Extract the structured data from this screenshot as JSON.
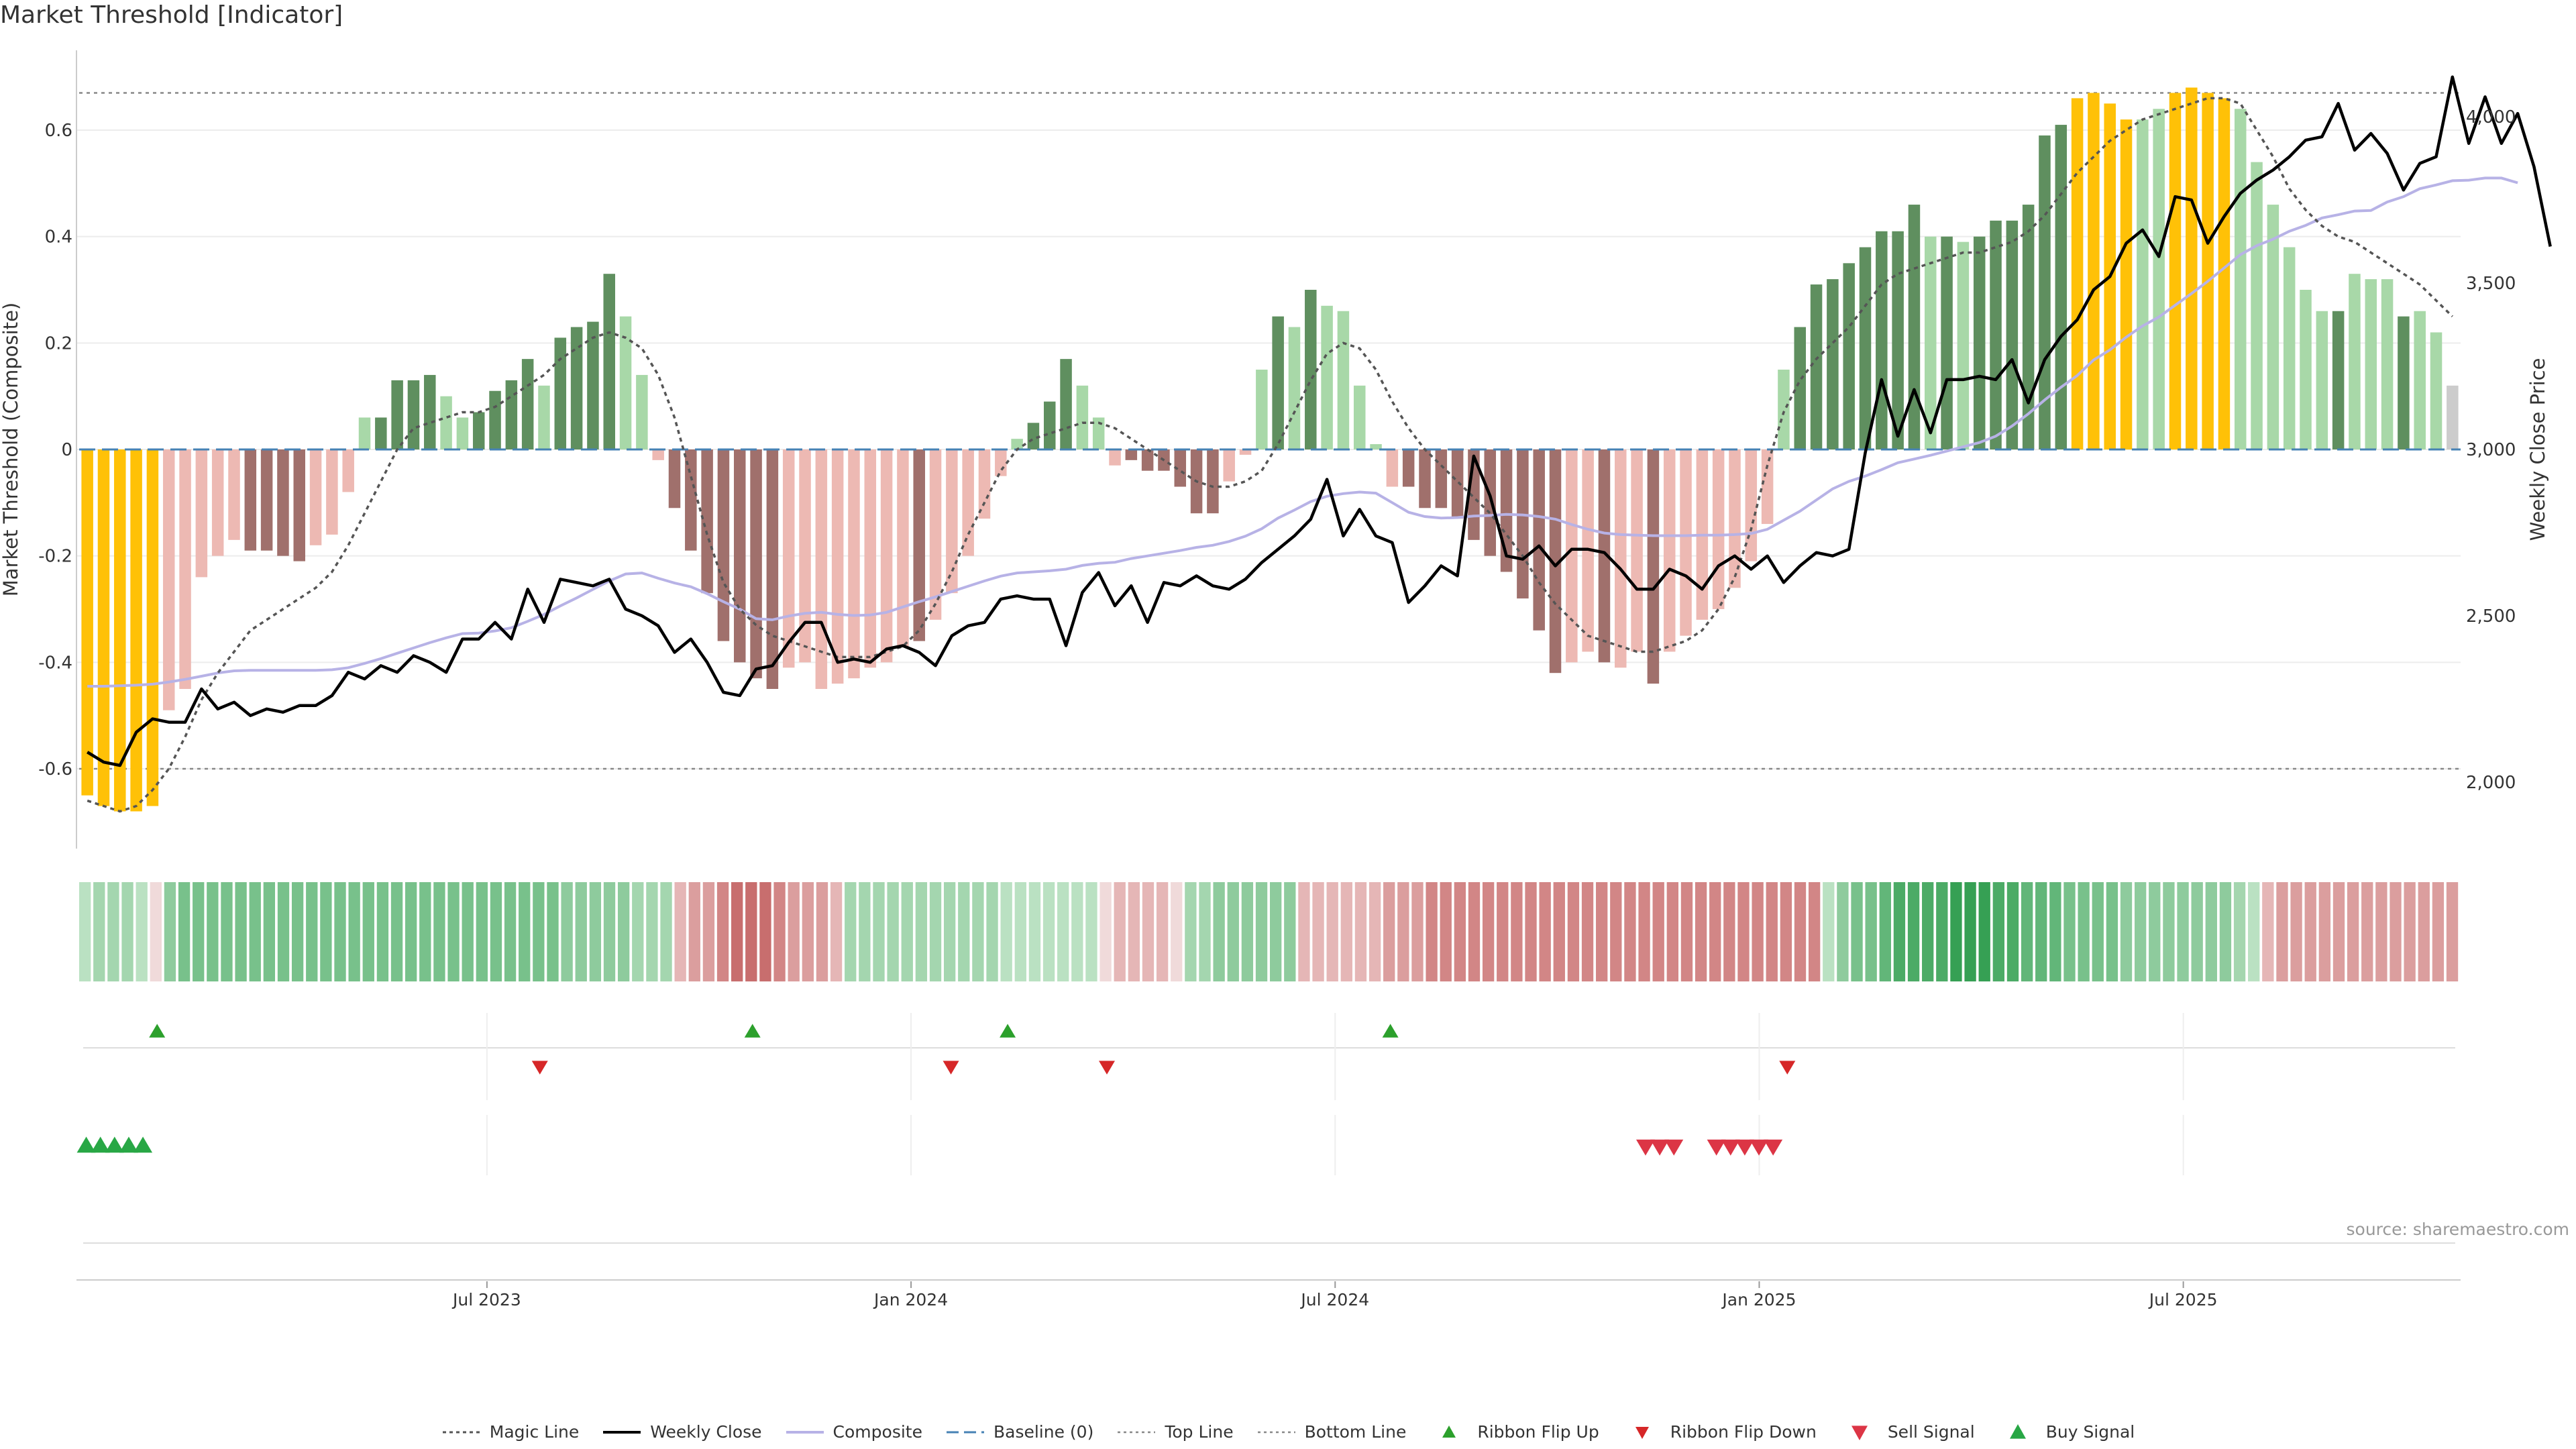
{
  "title": "Market Threshold [Indicator]",
  "source": "source: sharemaestro.com",
  "colors": {
    "gold": "#FFC107",
    "dark_green": "#5F8F5F",
    "light_green": "#A8D8A8",
    "dark_red": "#A0706C",
    "light_red": "#EDB9B3",
    "weekly_close": "#000000",
    "magic_line": "#555555",
    "composite": "#B7B2E6",
    "baseline": "#4682B4",
    "ref_lines": "#888888",
    "ribbon_flip_up": "#2CA02C",
    "ribbon_flip_down": "#D62728",
    "sell_signal": "#DC3545",
    "buy_signal": "#28A745"
  },
  "chart_data": {
    "type": "bar",
    "title": "Market Threshold [Indicator]",
    "ylabel_left": "Market Threshold (Composite)",
    "ylabel_right": "Weekly Close Price",
    "ylim_left": [
      -0.75,
      0.75
    ],
    "ylim_right": [
      1800,
      4200
    ],
    "yticks_left": [
      "0.6",
      "0.4",
      "0.2",
      "0",
      "-0.2",
      "-0.4",
      "-0.6"
    ],
    "yticks_right": [
      "4,000",
      "3,500",
      "3,000",
      "2,500",
      "2,000"
    ],
    "x_labels": [
      "Jul 2023",
      "Jan 2024",
      "Jul 2024",
      "Jan 2025",
      "Jul 2025"
    ],
    "x_label_weeks": [
      25,
      51,
      77,
      103,
      129
    ],
    "top_line": 0.67,
    "bottom_line": -0.6,
    "baseline": 0,
    "grid": true,
    "legend_position": "bottom",
    "composite_bars": [
      -0.65,
      -0.67,
      -0.68,
      -0.68,
      -0.67,
      -0.49,
      -0.45,
      -0.24,
      -0.2,
      -0.17,
      -0.19,
      -0.19,
      -0.2,
      -0.21,
      -0.18,
      -0.16,
      -0.08,
      0.06,
      0.06,
      0.13,
      0.13,
      0.14,
      0.1,
      0.06,
      0.07,
      0.11,
      0.13,
      0.17,
      0.12,
      0.21,
      0.23,
      0.24,
      0.33,
      0.25,
      0.14,
      -0.02,
      -0.11,
      -0.19,
      -0.27,
      -0.36,
      -0.4,
      -0.43,
      -0.45,
      -0.41,
      -0.4,
      -0.45,
      -0.44,
      -0.43,
      -0.41,
      -0.4,
      -0.37,
      -0.36,
      -0.32,
      -0.27,
      -0.2,
      -0.13,
      -0.05,
      0.02,
      0.05,
      0.09,
      0.17,
      0.12,
      0.06,
      -0.03,
      -0.02,
      -0.04,
      -0.04,
      -0.07,
      -0.12,
      -0.12,
      -0.06,
      -0.01,
      0.15,
      0.25,
      0.23,
      0.3,
      0.27,
      0.26,
      0.12,
      0.01,
      -0.07,
      -0.07,
      -0.11,
      -0.11,
      -0.13,
      -0.17,
      -0.2,
      -0.23,
      -0.28,
      -0.34,
      -0.42,
      -0.4,
      -0.38,
      -0.4,
      -0.41,
      -0.38,
      -0.44,
      -0.38,
      -0.35,
      -0.32,
      -0.3,
      -0.26,
      -0.21,
      -0.14,
      0.15,
      0.23,
      0.31,
      0.32,
      0.35,
      0.38,
      0.41,
      0.41,
      0.46,
      0.4,
      0.4,
      0.39,
      0.4,
      0.43,
      0.43,
      0.46,
      0.59,
      0.61,
      0.66,
      0.67,
      0.65,
      0.62,
      0.62,
      0.64,
      0.67,
      0.68,
      0.67,
      0.66,
      0.64,
      0.54,
      0.46,
      0.38,
      0.3,
      0.26,
      0.26,
      0.33,
      0.32,
      0.32,
      0.25,
      0.26,
      0.22,
      0.12
    ],
    "bar_categories": [
      "gold",
      "gold",
      "gold",
      "gold",
      "gold",
      "light_red",
      "light_red",
      "light_red",
      "light_red",
      "light_red",
      "dark_red",
      "dark_red",
      "dark_red",
      "dark_red",
      "light_red",
      "light_red",
      "light_red",
      "light_green",
      "dark_green",
      "dark_green",
      "dark_green",
      "dark_green",
      "light_green",
      "light_green",
      "dark_green",
      "dark_green",
      "dark_green",
      "dark_green",
      "light_green",
      "dark_green",
      "dark_green",
      "dark_green",
      "dark_green",
      "light_green",
      "light_green",
      "light_red",
      "dark_red",
      "dark_red",
      "dark_red",
      "dark_red",
      "dark_red",
      "dark_red",
      "dark_red",
      "light_red",
      "light_red",
      "light_red",
      "light_red",
      "light_red",
      "light_red",
      "light_red",
      "light_red",
      "dark_red",
      "light_red",
      "light_red",
      "light_red",
      "light_red",
      "light_red",
      "light_green",
      "dark_green",
      "dark_green",
      "dark_green",
      "light_green",
      "light_green",
      "light_red",
      "dark_red",
      "dark_red",
      "dark_red",
      "dark_red",
      "dark_red",
      "dark_red",
      "light_red",
      "light_red",
      "light_green",
      "dark_green",
      "light_green",
      "dark_green",
      "light_green",
      "light_green",
      "light_green",
      "light_green",
      "light_red",
      "dark_red",
      "dark_red",
      "dark_red",
      "dark_red",
      "dark_red",
      "dark_red",
      "dark_red",
      "dark_red",
      "dark_red",
      "dark_red",
      "light_red",
      "light_red",
      "dark_red",
      "light_red",
      "light_red",
      "dark_red",
      "light_red",
      "light_red",
      "light_red",
      "light_red",
      "light_red",
      "light_red",
      "light_red",
      "light_green",
      "dark_green",
      "dark_green",
      "dark_green",
      "dark_green",
      "dark_green",
      "dark_green",
      "dark_green",
      "dark_green",
      "light_green",
      "dark_green",
      "light_green",
      "dark_green",
      "dark_green",
      "dark_green",
      "dark_green",
      "dark_green",
      "dark_green",
      "gold",
      "gold",
      "gold",
      "gold",
      "light_green",
      "light_green",
      "gold",
      "gold",
      "gold",
      "gold",
      "light_green",
      "light_green",
      "light_green",
      "light_green",
      "light_green",
      "light_green",
      "dark_green",
      "light_green",
      "light_green",
      "light_green",
      "dark_green",
      "light_green",
      "light_green"
    ],
    "weekly_close": [
      2090,
      2060,
      2050,
      2150,
      2190,
      2180,
      2180,
      2280,
      2220,
      2240,
      2200,
      2220,
      2210,
      2230,
      2230,
      2260,
      2330,
      2310,
      2350,
      2330,
      2380,
      2360,
      2330,
      2430,
      2430,
      2480,
      2430,
      2580,
      2480,
      2610,
      2600,
      2590,
      2610,
      2520,
      2500,
      2470,
      2390,
      2430,
      2360,
      2270,
      2260,
      2340,
      2350,
      2420,
      2480,
      2480,
      2360,
      2370,
      2360,
      2400,
      2410,
      2390,
      2350,
      2440,
      2470,
      2480,
      2550,
      2560,
      2550,
      2550,
      2410,
      2570,
      2630,
      2530,
      2590,
      2480,
      2600,
      2590,
      2620,
      2590,
      2580,
      2610,
      2660,
      2700,
      2740,
      2790,
      2910,
      2740,
      2820,
      2740,
      2720,
      2540,
      2590,
      2650,
      2620,
      2980,
      2860,
      2680,
      2670,
      2710,
      2650,
      2700,
      2700,
      2690,
      2640,
      2580,
      2580,
      2640,
      2620,
      2580,
      2650,
      2680,
      2640,
      2680,
      2600,
      2650,
      2690,
      2680,
      2700,
      2990,
      3210,
      3040,
      3180,
      3050,
      3210,
      3210,
      3220,
      3210,
      3270,
      3140,
      3270,
      3340,
      3390,
      3480,
      3520,
      3620,
      3660,
      3580,
      3760,
      3750,
      3620,
      3700,
      3770,
      3810,
      3840,
      3880,
      3930,
      3940,
      4040,
      3900,
      3950,
      3890,
      3780,
      3860,
      3880,
      4120,
      3920,
      4060,
      3920,
      4010,
      3850,
      3610
    ],
    "magic_line": [
      -0.66,
      -0.67,
      -0.68,
      -0.67,
      -0.64,
      -0.6,
      -0.54,
      -0.47,
      -0.42,
      -0.38,
      -0.34,
      -0.32,
      -0.3,
      -0.28,
      -0.26,
      -0.23,
      -0.18,
      -0.12,
      -0.06,
      0.0,
      0.04,
      0.05,
      0.06,
      0.07,
      0.07,
      0.08,
      0.1,
      0.12,
      0.14,
      0.17,
      0.19,
      0.21,
      0.22,
      0.21,
      0.19,
      0.14,
      0.06,
      -0.05,
      -0.16,
      -0.25,
      -0.3,
      -0.33,
      -0.35,
      -0.36,
      -0.37,
      -0.38,
      -0.39,
      -0.39,
      -0.39,
      -0.38,
      -0.37,
      -0.34,
      -0.29,
      -0.23,
      -0.16,
      -0.1,
      -0.04,
      0.0,
      0.02,
      0.03,
      0.04,
      0.05,
      0.05,
      0.04,
      0.02,
      0.0,
      -0.02,
      -0.04,
      -0.06,
      -0.07,
      -0.07,
      -0.06,
      -0.04,
      0.01,
      0.07,
      0.13,
      0.18,
      0.2,
      0.19,
      0.15,
      0.09,
      0.04,
      0.0,
      -0.03,
      -0.06,
      -0.09,
      -0.12,
      -0.16,
      -0.2,
      -0.25,
      -0.29,
      -0.32,
      -0.35,
      -0.36,
      -0.37,
      -0.38,
      -0.38,
      -0.37,
      -0.36,
      -0.34,
      -0.3,
      -0.24,
      -0.15,
      -0.03,
      0.07,
      0.13,
      0.17,
      0.2,
      0.23,
      0.27,
      0.31,
      0.33,
      0.34,
      0.35,
      0.36,
      0.37,
      0.37,
      0.38,
      0.39,
      0.41,
      0.44,
      0.48,
      0.52,
      0.55,
      0.58,
      0.6,
      0.62,
      0.63,
      0.64,
      0.65,
      0.66,
      0.66,
      0.65,
      0.6,
      0.55,
      0.49,
      0.45,
      0.42,
      0.4,
      0.39,
      0.37,
      0.35,
      0.33,
      0.31,
      0.28,
      0.25
    ],
    "composite_line": [
      -0.445,
      -0.445,
      -0.444,
      -0.443,
      -0.441,
      -0.437,
      -0.432,
      -0.426,
      -0.42,
      -0.416,
      -0.415,
      -0.415,
      -0.415,
      -0.415,
      -0.415,
      -0.414,
      -0.41,
      -0.402,
      -0.393,
      -0.383,
      -0.373,
      -0.363,
      -0.354,
      -0.346,
      -0.345,
      -0.341,
      -0.335,
      -0.323,
      -0.31,
      -0.294,
      -0.279,
      -0.263,
      -0.247,
      -0.234,
      -0.232,
      -0.242,
      -0.251,
      -0.258,
      -0.271,
      -0.286,
      -0.3,
      -0.318,
      -0.32,
      -0.313,
      -0.308,
      -0.306,
      -0.31,
      -0.312,
      -0.311,
      -0.306,
      -0.296,
      -0.286,
      -0.277,
      -0.267,
      -0.257,
      -0.247,
      -0.238,
      -0.232,
      -0.23,
      -0.228,
      -0.225,
      -0.218,
      -0.214,
      -0.212,
      -0.205,
      -0.2,
      -0.195,
      -0.19,
      -0.184,
      -0.18,
      -0.173,
      -0.163,
      -0.149,
      -0.129,
      -0.114,
      -0.098,
      -0.088,
      -0.083,
      -0.08,
      -0.082,
      -0.1,
      -0.118,
      -0.126,
      -0.129,
      -0.128,
      -0.125,
      -0.124,
      -0.122,
      -0.123,
      -0.126,
      -0.131,
      -0.141,
      -0.15,
      -0.157,
      -0.16,
      -0.161,
      -0.162,
      -0.162,
      -0.162,
      -0.161,
      -0.161,
      -0.16,
      -0.158,
      -0.15,
      -0.133,
      -0.116,
      -0.095,
      -0.074,
      -0.06,
      -0.05,
      -0.038,
      -0.025,
      -0.018,
      -0.011,
      -0.003,
      0.005,
      0.013,
      0.025,
      0.044,
      0.067,
      0.093,
      0.117,
      0.139,
      0.168,
      0.187,
      0.211,
      0.232,
      0.249,
      0.271,
      0.293,
      0.316,
      0.341,
      0.366,
      0.383,
      0.395,
      0.41,
      0.421,
      0.435,
      0.441,
      0.448,
      0.449,
      0.465,
      0.475,
      0.49,
      0.497,
      0.505,
      0.506,
      0.51,
      0.51,
      0.501
    ],
    "ribbon_states": [
      1,
      2,
      2,
      2,
      1,
      0,
      3,
      4,
      4,
      4,
      4,
      4,
      4,
      4,
      4,
      4,
      4,
      4,
      4,
      4,
      4,
      4,
      4,
      4,
      4,
      4,
      4,
      4,
      4,
      4,
      4,
      4,
      4,
      4,
      3,
      3,
      3,
      3,
      3,
      2,
      2,
      2,
      -1,
      -2,
      -2,
      -3,
      -4,
      -4,
      -4,
      -3,
      -2,
      -2,
      -2,
      -1,
      2,
      2,
      2,
      2,
      2,
      2,
      2,
      2,
      2,
      2,
      2,
      1,
      1,
      1,
      1,
      1,
      1,
      1,
      0,
      -1,
      -1,
      -1,
      -1,
      0,
      2,
      2,
      3,
      3,
      3,
      3,
      3,
      3,
      -1,
      -1,
      -1,
      -1,
      -1,
      -1,
      -2,
      -2,
      -2,
      -3,
      -3,
      -3,
      -3,
      -3,
      -3,
      -3,
      -3,
      -3,
      -3,
      -3,
      -3,
      -3,
      -3,
      -3,
      -3,
      -3,
      -3,
      -3,
      -3,
      -3,
      -3,
      -3,
      -3,
      -3,
      -3,
      -3,
      -3,
      1,
      3,
      4,
      4,
      5,
      6,
      6,
      6,
      6,
      7,
      7,
      7,
      6,
      6,
      5,
      5,
      5,
      4,
      4,
      4,
      4,
      3,
      3,
      3,
      3,
      3,
      3,
      3,
      3,
      2,
      1,
      -1,
      -2,
      -2,
      -2,
      -2,
      -2,
      -2,
      -2,
      -2,
      -2,
      -2,
      -2,
      -2,
      -2
    ],
    "ribbon_flip_up_weeks": [
      5,
      47,
      65,
      92
    ],
    "ribbon_flip_down_weeks": [
      32,
      61,
      72,
      120
    ],
    "buy_signal_weeks": [
      0,
      1,
      2,
      3,
      4
    ],
    "sell_signal_weeks": [
      110,
      111,
      112,
      115,
      116,
      117,
      118,
      119
    ]
  },
  "legend": [
    {
      "label": "Magic Line",
      "icon": "dotted-line"
    },
    {
      "label": "Weekly Close",
      "icon": "solid-line"
    },
    {
      "label": "Composite",
      "icon": "lavender-line"
    },
    {
      "label": "Baseline (0)",
      "icon": "dashed-line"
    },
    {
      "label": "Top Line",
      "icon": "dotted-line-light"
    },
    {
      "label": "Bottom Line",
      "icon": "dotted-line-light"
    },
    {
      "label": "Ribbon Flip Up",
      "icon": "triangle-up-green"
    },
    {
      "label": "Ribbon Flip Down",
      "icon": "triangle-down-red"
    },
    {
      "label": "Sell Signal",
      "icon": "triangle-down-red-large"
    },
    {
      "label": "Buy Signal",
      "icon": "triangle-up-green-large"
    }
  ]
}
